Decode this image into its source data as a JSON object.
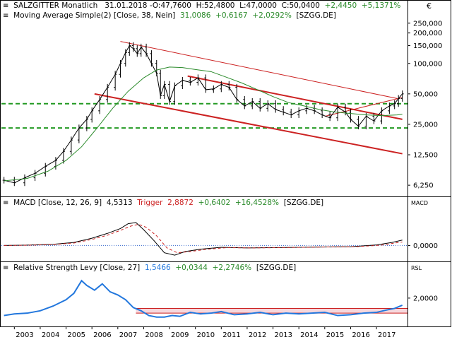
{
  "chart_data": [
    {
      "type": "line",
      "panel": "price",
      "scale": "log",
      "ylim": [
        5000,
        270000
      ],
      "yticks": [
        "250,000",
        "200,000",
        "150,000",
        "100,000",
        "50,000",
        "25,000",
        "12,500",
        "6,250"
      ],
      "ytick_values": [
        250000,
        200000,
        150000,
        100000,
        50000,
        25000,
        12500,
        6250
      ],
      "xlim": [
        2002.5,
        2018.2
      ],
      "header": {
        "instrument": "SALZGITTER Monatlich",
        "date": "31.01.2018",
        "open": "-O:47,7600",
        "high": "H:52,4800",
        "low": "L:47,0000",
        "close": "C:50,0400",
        "change": "+2,4450",
        "change_pct": "+5,1371%"
      },
      "indicator": {
        "label": "Moving Average Simple(2) [Close, 38, Nein]",
        "value": "31,0086",
        "change": "+0,6167",
        "change_pct": "+2,0292%",
        "source": "[SZGG.DE]",
        "color": "#2a8a2a"
      },
      "series": [
        {
          "name": "SALZGITTER Monatlich",
          "color": "#000000",
          "x": [
            2002.6,
            2003.0,
            2003.4,
            2003.8,
            2004.2,
            2004.6,
            2004.9,
            2005.2,
            2005.5,
            2005.8,
            2006.0,
            2006.3,
            2006.6,
            2006.9,
            2007.1,
            2007.3,
            2007.45,
            2007.6,
            2007.75,
            2007.9,
            2008.1,
            2008.3,
            2008.5,
            2008.65,
            2008.8,
            2009.0,
            2009.2,
            2009.5,
            2009.8,
            2010.1,
            2010.4,
            2010.7,
            2011.0,
            2011.3,
            2011.6,
            2011.9,
            2012.2,
            2012.5,
            2012.8,
            2013.1,
            2013.4,
            2013.7,
            2014.0,
            2014.3,
            2014.6,
            2014.9,
            2015.2,
            2015.5,
            2015.8,
            2016.0,
            2016.3,
            2016.6,
            2016.9,
            2017.2,
            2017.5,
            2017.7,
            2017.85,
            2018.0
          ],
          "y": [
            7000,
            6600,
            7400,
            8200,
            9600,
            11000,
            13500,
            17500,
            23000,
            28000,
            34000,
            44000,
            58000,
            78000,
            100000,
            128000,
            150000,
            140000,
            125000,
            145000,
            125000,
            100000,
            80000,
            48000,
            62000,
            42000,
            60000,
            68000,
            65000,
            72000,
            55000,
            56000,
            62000,
            58000,
            44000,
            38000,
            42000,
            36000,
            40000,
            35000,
            33000,
            31000,
            34000,
            36000,
            34000,
            31000,
            29000,
            37000,
            33000,
            28000,
            24000,
            30000,
            27000,
            34000,
            38000,
            40000,
            45000,
            50000
          ]
        },
        {
          "name": "Moving Average Simple(2)",
          "color": "#2a8a2a",
          "x": [
            2002.6,
            2003.5,
            2004.3,
            2005.0,
            2005.6,
            2006.2,
            2006.8,
            2007.4,
            2008.0,
            2008.5,
            2009.0,
            2009.5,
            2010.0,
            2010.6,
            2011.2,
            2011.8,
            2012.4,
            2013.0,
            2013.6,
            2014.2,
            2014.8,
            2015.4,
            2016.0,
            2016.6,
            2017.2,
            2017.8,
            2018.0
          ],
          "y": [
            6900,
            7300,
            8600,
            11000,
            15000,
            23000,
            36000,
            53000,
            72000,
            86000,
            92000,
            91000,
            87000,
            83000,
            73000,
            64000,
            55000,
            47000,
            41000,
            38000,
            35000,
            33000,
            32000,
            31000,
            30500,
            31000,
            31500
          ]
        }
      ],
      "trend_lines": [
        {
          "color": "#cc2222",
          "x": [
            2006.1,
            2018.0
          ],
          "y": [
            50000,
            12800
          ]
        },
        {
          "color": "#cc2222",
          "x": [
            2009.7,
            2018.0
          ],
          "y": [
            75000,
            28000
          ]
        },
        {
          "color": "#cc2222",
          "x": [
            2015.0,
            2018.0
          ],
          "y": [
            30000,
            46000
          ]
        },
        {
          "color": "#cc2222",
          "x": [
            2007.1,
            2017.8
          ],
          "y": [
            165000,
            45000
          ]
        }
      ],
      "horizontal_lines": [
        {
          "color": "#229922",
          "style": "dashed",
          "y": 40000
        },
        {
          "color": "#229922",
          "style": "dashed",
          "y": 23000
        }
      ]
    },
    {
      "type": "line",
      "panel": "macd",
      "label": "MACD [Close, 12, 26, 9]",
      "value": "4,5313",
      "trigger_label": "Trigger",
      "trigger_value": "2,8872",
      "change": "+0,6402",
      "change_pct": "+16,4528%",
      "source": "[SZGG.DE]",
      "ylim": [
        -12,
        30
      ],
      "yticks": [
        "0,0000"
      ],
      "ytick_values": [
        0
      ],
      "axis_title": "MACD",
      "series": [
        {
          "name": "MACD",
          "color": "#000000",
          "x": [
            2002.6,
            2003.5,
            2004.5,
            2005.3,
            2006.0,
            2006.6,
            2007.1,
            2007.4,
            2007.7,
            2008.0,
            2008.4,
            2008.8,
            2009.2,
            2009.6,
            2010.2,
            2011.0,
            2012.0,
            2013.0,
            2014.0,
            2015.0,
            2016.0,
            2017.0,
            2017.6,
            2018.0
          ],
          "y": [
            0,
            0.3,
            1,
            2.5,
            6,
            10,
            14,
            18,
            19,
            13,
            4,
            -6,
            -8,
            -5,
            -3,
            -1.5,
            -2,
            -1.8,
            -1.5,
            -1.2,
            -1,
            0.5,
            2.5,
            4.5
          ]
        },
        {
          "name": "Trigger",
          "color": "#cc2222",
          "style": "dashed",
          "x": [
            2002.6,
            2003.5,
            2004.5,
            2005.3,
            2006.0,
            2006.6,
            2007.1,
            2007.5,
            2007.8,
            2008.1,
            2008.5,
            2008.9,
            2009.3,
            2009.8,
            2010.4,
            2011.2,
            2012.2,
            2013.2,
            2014.2,
            2015.2,
            2016.2,
            2017.2,
            2017.7,
            2018.0
          ],
          "y": [
            0,
            0.2,
            0.8,
            2,
            5,
            8.5,
            12.5,
            16,
            17.5,
            15,
            8,
            -2,
            -6,
            -5,
            -3.2,
            -1.8,
            -2,
            -1.8,
            -1.5,
            -1.2,
            -1,
            0.3,
            2,
            2.9
          ]
        }
      ]
    },
    {
      "type": "line",
      "panel": "rsl",
      "label": "Relative Strength Levy [Close, 27]",
      "value": "1,5466",
      "change": "+0,0344",
      "change_pct": "+2,2746%",
      "source": "[SZGG.DE]",
      "ylim": [
        0.3,
        3.6
      ],
      "yticks": [
        "2,0000"
      ],
      "ytick_values": [
        2
      ],
      "axis_title": "RSL",
      "series": [
        {
          "name": "Relative Strength Levy",
          "color": "#2277dd",
          "x": [
            2002.6,
            2003.0,
            2003.5,
            2004.0,
            2004.5,
            2005.0,
            2005.3,
            2005.6,
            2005.8,
            2006.1,
            2006.4,
            2006.7,
            2007.0,
            2007.3,
            2007.6,
            2007.9,
            2008.2,
            2008.5,
            2008.8,
            2009.1,
            2009.4,
            2009.8,
            2010.2,
            2010.6,
            2011.0,
            2011.5,
            2012.0,
            2012.5,
            2013.0,
            2013.5,
            2014.0,
            2014.5,
            2015.0,
            2015.5,
            2016.0,
            2016.5,
            2017.0,
            2017.4,
            2017.7,
            2018.0
          ],
          "y": [
            0.9,
            1.0,
            1.05,
            1.2,
            1.5,
            1.9,
            2.3,
            3.1,
            2.8,
            2.5,
            2.9,
            2.4,
            2.2,
            1.9,
            1.4,
            1.2,
            0.9,
            0.8,
            0.8,
            0.9,
            0.85,
            1.1,
            1.0,
            1.05,
            1.15,
            0.95,
            1.0,
            1.1,
            0.95,
            1.05,
            1.0,
            1.05,
            1.1,
            0.9,
            0.95,
            1.05,
            1.1,
            1.25,
            1.35,
            1.55
          ]
        }
      ],
      "bands": [
        {
          "color": "#cc2222",
          "y": [
            1.05,
            1.35
          ]
        }
      ]
    }
  ],
  "x_axis": {
    "years": [
      "2003",
      "2004",
      "2005",
      "2006",
      "2007",
      "2008",
      "2009",
      "2010",
      "2011",
      "2012",
      "2013",
      "2014",
      "2015",
      "2016",
      "2017"
    ],
    "year_values": [
      2003,
      2004,
      2005,
      2006,
      2007,
      2008,
      2009,
      2010,
      2011,
      2012,
      2013,
      2014,
      2015,
      2016,
      2017
    ]
  },
  "currency_symbol": "€"
}
